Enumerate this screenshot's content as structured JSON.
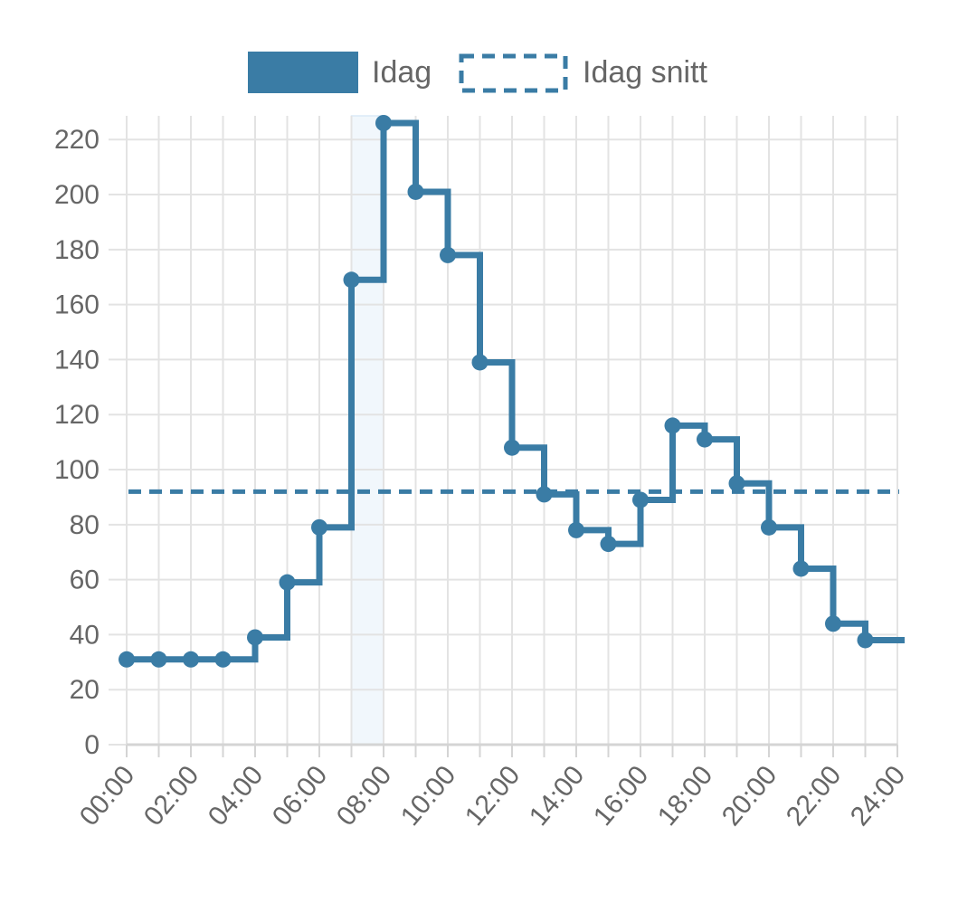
{
  "chart_data": {
    "type": "line",
    "step": "after",
    "x_tick_labels": [
      "00:00",
      "02:00",
      "04:00",
      "06:00",
      "08:00",
      "10:00",
      "12:00",
      "14:00",
      "16:00",
      "18:00",
      "20:00",
      "22:00",
      "24:00"
    ],
    "hours": [
      0,
      1,
      2,
      3,
      4,
      5,
      6,
      7,
      8,
      9,
      10,
      11,
      12,
      13,
      14,
      15,
      16,
      17,
      18,
      19,
      20,
      21,
      22,
      23
    ],
    "series": [
      {
        "name": "Idag",
        "values": [
          31,
          31,
          31,
          31,
          39,
          59,
          79,
          169,
          226,
          201,
          178,
          139,
          108,
          91,
          78,
          73,
          89,
          116,
          111,
          95,
          79,
          64,
          44,
          38
        ],
        "end_value": 38
      },
      {
        "name": "Idag snitt",
        "value": 92,
        "style": "dashed"
      }
    ],
    "highlight_range": [
      7,
      8
    ],
    "xlim": [
      0,
      24
    ],
    "ylim": [
      0,
      226
    ],
    "y_ticks": [
      0,
      20,
      40,
      60,
      80,
      100,
      120,
      140,
      160,
      180,
      200,
      220
    ],
    "grid": true,
    "legend_position": "top",
    "title": "",
    "xlabel": "",
    "ylabel": ""
  },
  "colors": {
    "series": "#3a7ca5",
    "grid": "#e3e3e3",
    "axis": "#d4d4d4",
    "highlight": "#dbeaf7",
    "text": "#666666"
  }
}
